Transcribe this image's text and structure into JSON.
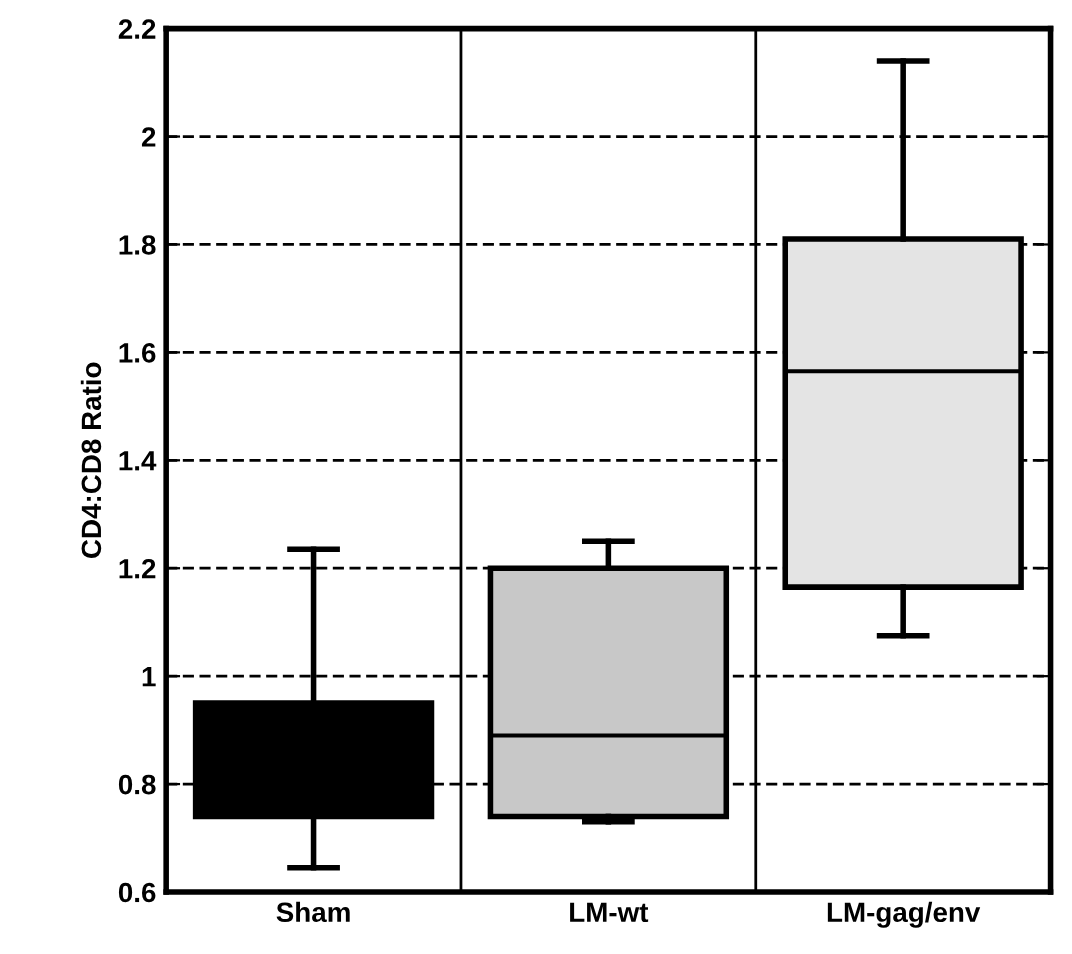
{
  "chart_data": {
    "type": "box",
    "ylabel": "CD4:CD8 Ratio",
    "categories": [
      "Sham",
      "LM-wt",
      "LM-gag/env"
    ],
    "boxes": [
      {
        "low": 0.645,
        "q1": 0.74,
        "median": 0.89,
        "q3": 0.95,
        "high": 1.235
      },
      {
        "low": 0.73,
        "q1": 0.74,
        "median": 0.89,
        "q3": 1.2,
        "high": 1.25
      },
      {
        "low": 1.075,
        "q1": 1.165,
        "median": 1.565,
        "q3": 1.81,
        "high": 2.14
      }
    ],
    "colors": [
      "#000000",
      "#c8c8c8",
      "#e4e4e4"
    ],
    "ylim": [
      0.6,
      2.2
    ],
    "yticks": [
      0.6,
      0.8,
      1,
      1.2,
      1.4,
      1.6,
      1.8,
      2,
      2.2
    ],
    "grid": true
  }
}
